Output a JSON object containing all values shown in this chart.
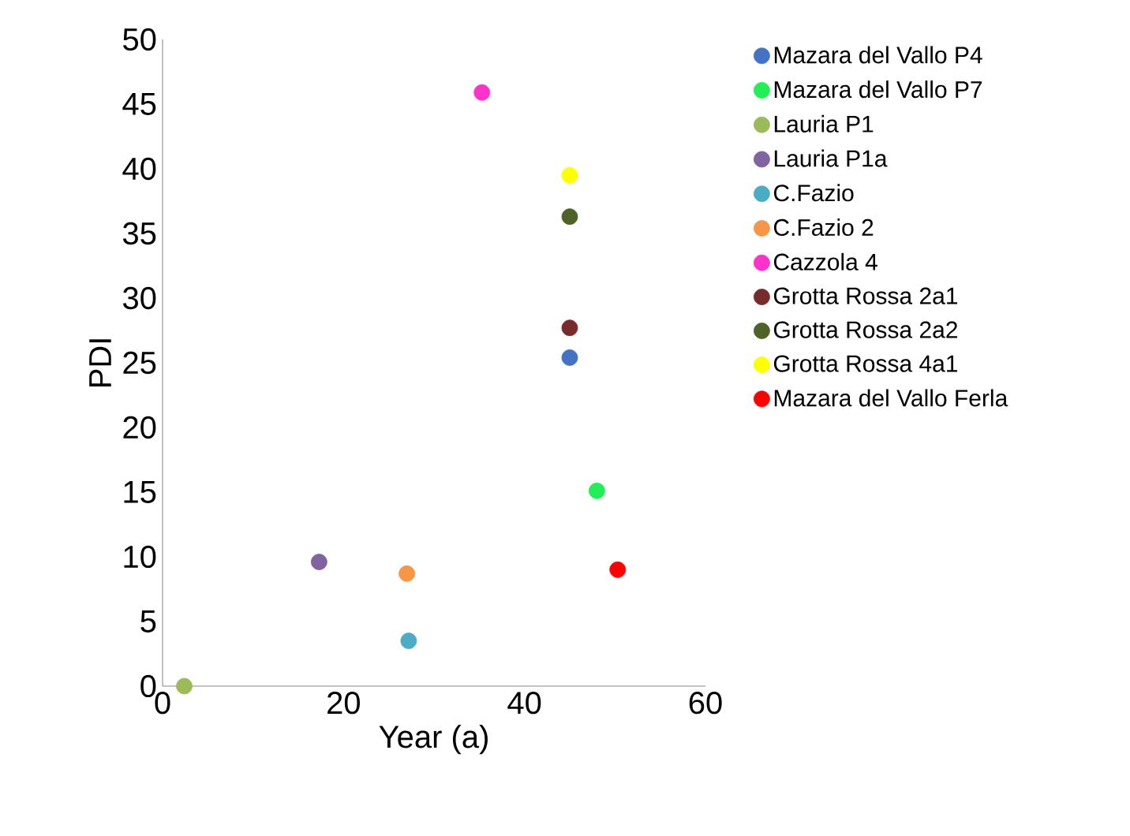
{
  "chart_data": {
    "type": "scatter",
    "xlabel": "Year (a)",
    "ylabel": "PDI",
    "xlim": [
      0,
      60
    ],
    "ylim": [
      0,
      50
    ],
    "xticks": [
      0,
      20,
      40,
      60
    ],
    "yticks": [
      0,
      5,
      10,
      15,
      20,
      25,
      30,
      35,
      40,
      45,
      50
    ],
    "grid": false,
    "legend": "right",
    "marker": "circle",
    "series": [
      {
        "name": "Mazara del Vallo P4",
        "color": "#4472c4",
        "x": [
          45
        ],
        "values": [
          25.4
        ]
      },
      {
        "name": "Mazara del Vallo P7",
        "color": "#22ee55",
        "x": [
          48
        ],
        "values": [
          15.1
        ]
      },
      {
        "name": "Lauria P1",
        "color": "#9bbb59",
        "x": [
          2.4
        ],
        "values": [
          0
        ]
      },
      {
        "name": "Lauria P1a",
        "color": "#8064a2",
        "x": [
          17.3
        ],
        "values": [
          9.6
        ]
      },
      {
        "name": "C.Fazio",
        "color": "#4bacc6",
        "x": [
          27.2
        ],
        "values": [
          3.5
        ]
      },
      {
        "name": "C.Fazio 2",
        "color": "#f79646",
        "x": [
          27
        ],
        "values": [
          8.7
        ]
      },
      {
        "name": "Cazzola 4",
        "color": "#ff33cc",
        "x": [
          35.3
        ],
        "values": [
          45.9
        ]
      },
      {
        "name": "Grotta Rossa 2a1",
        "color": "#772c2a",
        "x": [
          45
        ],
        "values": [
          27.7
        ]
      },
      {
        "name": "Grotta Rossa 2a2",
        "color": "#4f6228",
        "x": [
          45
        ],
        "values": [
          36.3
        ]
      },
      {
        "name": "Grotta Rossa 4a1",
        "color": "#ffff00",
        "x": [
          45
        ],
        "values": [
          39.5
        ]
      },
      {
        "name": "Mazara del Vallo Ferla",
        "color": "#ff0000",
        "x": [
          50.3
        ],
        "values": [
          9.0
        ]
      }
    ]
  }
}
